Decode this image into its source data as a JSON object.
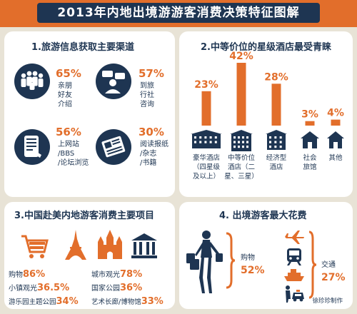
{
  "title": "2013年内地出境游游客消费决策特征图解",
  "colors": {
    "orange": "#e26e2b",
    "navy": "#1e3552",
    "bg": "#e8e3d6",
    "panel": "#ffffff"
  },
  "panel1": {
    "title": "1.旅游信息获取主要渠道",
    "items": [
      {
        "icon": "people-group-icon",
        "pct": "65%",
        "label": [
          "亲朋",
          "好友",
          "介绍"
        ]
      },
      {
        "icon": "agent-consult-icon",
        "pct": "57%",
        "label": [
          "到旅",
          "行社",
          "咨询"
        ]
      },
      {
        "icon": "tablet-web-icon",
        "pct": "56%",
        "label": [
          "上网站",
          "/BBS",
          "/论坛浏览"
        ]
      },
      {
        "icon": "newspaper-icon",
        "pct": "30%",
        "label": [
          "阅读报纸",
          "/杂志",
          "/书籍"
        ]
      }
    ]
  },
  "panel2": {
    "title": "2.中等价位的星级酒店最受青睐",
    "chart_data": {
      "type": "bar",
      "title": "中等价位的星级酒店最受青睐",
      "categories": [
        "豪华酒店（四星级及以上）",
        "中等价位酒店（二星、三星）",
        "经济型酒店",
        "社会旅馆",
        "其他"
      ],
      "values": [
        23,
        42,
        28,
        3,
        4
      ],
      "value_labels": [
        "23%",
        "42%",
        "28%",
        "3%",
        "4%"
      ],
      "label_lines": [
        [
          "豪华酒店",
          "（四星级",
          "及以上）"
        ],
        [
          "中等价位",
          "酒店（二",
          "星、三星）"
        ],
        [
          "经济型",
          "酒店"
        ],
        [
          "社会",
          "旅馆"
        ],
        [
          "其他"
        ]
      ],
      "icons": [
        "luxury-hotel-icon",
        "mid-hotel-icon",
        "budget-hotel-icon",
        "inn-icon",
        "other-house-icon"
      ]
    }
  },
  "panel3": {
    "title": "3.中国赴美内地游客消费主要项目",
    "icons": [
      "shopping-cart-icon",
      "eiffel-tower-icon",
      "castle-icon",
      "museum-icon"
    ],
    "items": [
      {
        "label": "购物",
        "pct": "86%"
      },
      {
        "label": "城市观光",
        "pct": "78%"
      },
      {
        "label": "小镇观光",
        "pct": "36.5%"
      },
      {
        "label": "国家公园",
        "pct": "36%"
      },
      {
        "label": "游乐园主题公园",
        "pct": "34%"
      },
      {
        "label": "艺术长廊/博物馆",
        "pct": "33%"
      }
    ]
  },
  "panel4": {
    "title": "4. 出境游客最大花费",
    "shopping": {
      "label": "购物",
      "pct": "52%"
    },
    "transport": {
      "label": "交通",
      "pct": "27%"
    },
    "icons": [
      "shopper-woman-icon",
      "airplane-icon",
      "train-icon",
      "ship-icon",
      "taxi-icon"
    ]
  },
  "credit": "徐珍珍制作"
}
